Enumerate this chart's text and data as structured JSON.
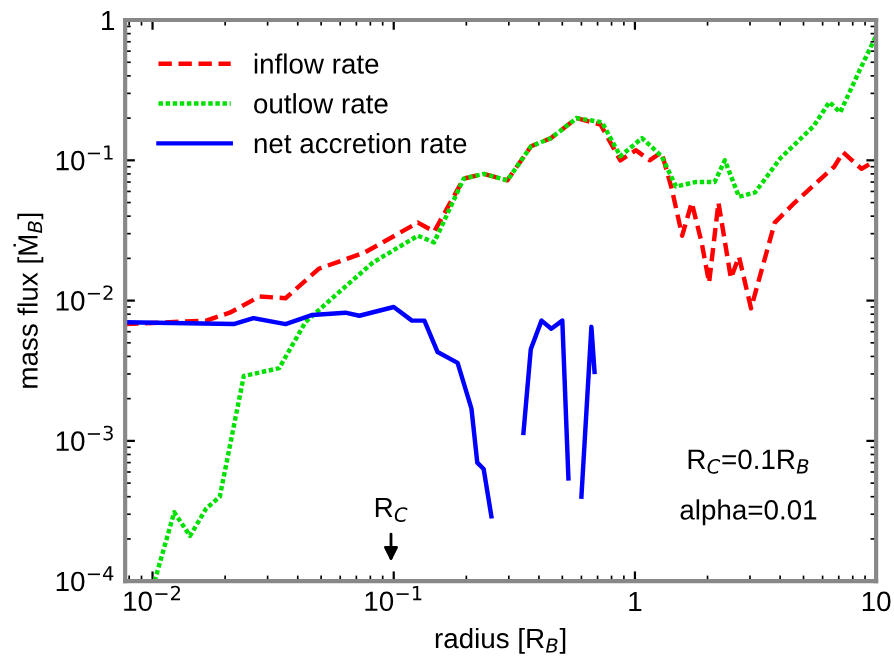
{
  "chart_data": {
    "type": "line",
    "xlabel": "radius [R$_{B}$]",
    "ylabel": "mass flux [Ṁ$_{B}$]",
    "log": "xy",
    "xlim": [
      0.0077,
      10
    ],
    "ylim": [
      0.0001,
      1
    ],
    "xticks": [
      {
        "value": 0.01,
        "label": "10$^{−2}$"
      },
      {
        "value": 0.1,
        "label": "10$^{−1}$"
      },
      1,
      10
    ],
    "yticks": [
      {
        "value": 0.0001,
        "label": "10$^{−4}$"
      },
      {
        "value": 0.001,
        "label": "10$^{−3}$"
      },
      {
        "value": 0.01,
        "label": "10$^{−2}$"
      },
      {
        "value": 0.1,
        "label": "10$^{−1}$"
      },
      1
    ],
    "grid": false,
    "legend": "top left",
    "marker": "none",
    "series": [
      {
        "name": "inflow rate",
        "color": "#ff0000",
        "line_style": "dashed",
        "x": [
          0.0077,
          0.0167,
          0.0209,
          0.0278,
          0.0356,
          0.049,
          0.0757,
          0.126,
          0.147,
          0.195,
          0.236,
          0.296,
          0.371,
          0.449,
          0.573,
          0.72,
          0.87,
          1.01,
          1.15,
          1.29,
          1.42,
          1.57,
          1.72,
          1.89,
          2.03,
          2.22,
          2.5,
          2.7,
          3.03,
          3.8,
          4.6,
          6.7,
          7.3,
          8.7,
          10
        ],
        "values": [
          0.0068,
          0.0072,
          0.0082,
          0.0107,
          0.0104,
          0.0169,
          0.022,
          0.036,
          0.031,
          0.074,
          0.08,
          0.072,
          0.126,
          0.144,
          0.2,
          0.18,
          0.1,
          0.118,
          0.1,
          0.114,
          0.063,
          0.029,
          0.05,
          0.026,
          0.0134,
          0.05,
          0.0144,
          0.0206,
          0.0088,
          0.036,
          0.05,
          0.09,
          0.114,
          0.087,
          0.1
        ]
      },
      {
        "name": "outlow rate",
        "color": "#00e000",
        "line_style": "dotted",
        "x": [
          0.0102,
          0.0123,
          0.0143,
          0.0167,
          0.019,
          0.0239,
          0.0335,
          0.043,
          0.059,
          0.082,
          0.126,
          0.147,
          0.195,
          0.236,
          0.296,
          0.371,
          0.449,
          0.573,
          0.73,
          0.87,
          1.07,
          1.29,
          1.48,
          1.78,
          2.14,
          2.36,
          2.7,
          3.15,
          4.0,
          5.5,
          6.4,
          7.1,
          8.6,
          10
        ],
        "values": [
          0.0001,
          0.00031,
          0.00021,
          0.00033,
          0.0004,
          0.0029,
          0.0033,
          0.007,
          0.0114,
          0.0187,
          0.029,
          0.026,
          0.074,
          0.08,
          0.072,
          0.126,
          0.144,
          0.2,
          0.187,
          0.107,
          0.144,
          0.107,
          0.065,
          0.07,
          0.07,
          0.1,
          0.055,
          0.059,
          0.103,
          0.175,
          0.26,
          0.22,
          0.45,
          0.77
        ]
      },
      {
        "name": "net accretion rate",
        "color": "#0000ff",
        "line_style": "solid",
        "x": [
          0.0077,
          0.0217,
          0.0262,
          0.0356,
          0.046,
          0.063,
          0.072,
          0.1,
          0.119,
          0.134,
          0.152,
          0.184,
          0.21,
          0.222,
          0.236,
          0.254,
          0.3,
          0.345,
          0.37,
          0.41,
          0.45,
          0.5,
          0.53,
          0.565,
          0.6,
          0.66,
          0.68
        ],
        "values": [
          0.007,
          0.0068,
          0.0075,
          0.0068,
          0.0079,
          0.0082,
          0.0078,
          0.009,
          0.0072,
          0.0072,
          0.0043,
          0.0036,
          0.0017,
          0.0007,
          0.00063,
          0.00029,
          null,
          0.00114,
          0.0045,
          0.0072,
          0.0063,
          0.0072,
          0.00054,
          null,
          0.0004,
          0.0065,
          0.0031
        ]
      }
    ],
    "annotations": [
      "R$_{C}$",
      "R$_{C}$=0.1R$_{B}$",
      "alpha=0.01"
    ]
  }
}
